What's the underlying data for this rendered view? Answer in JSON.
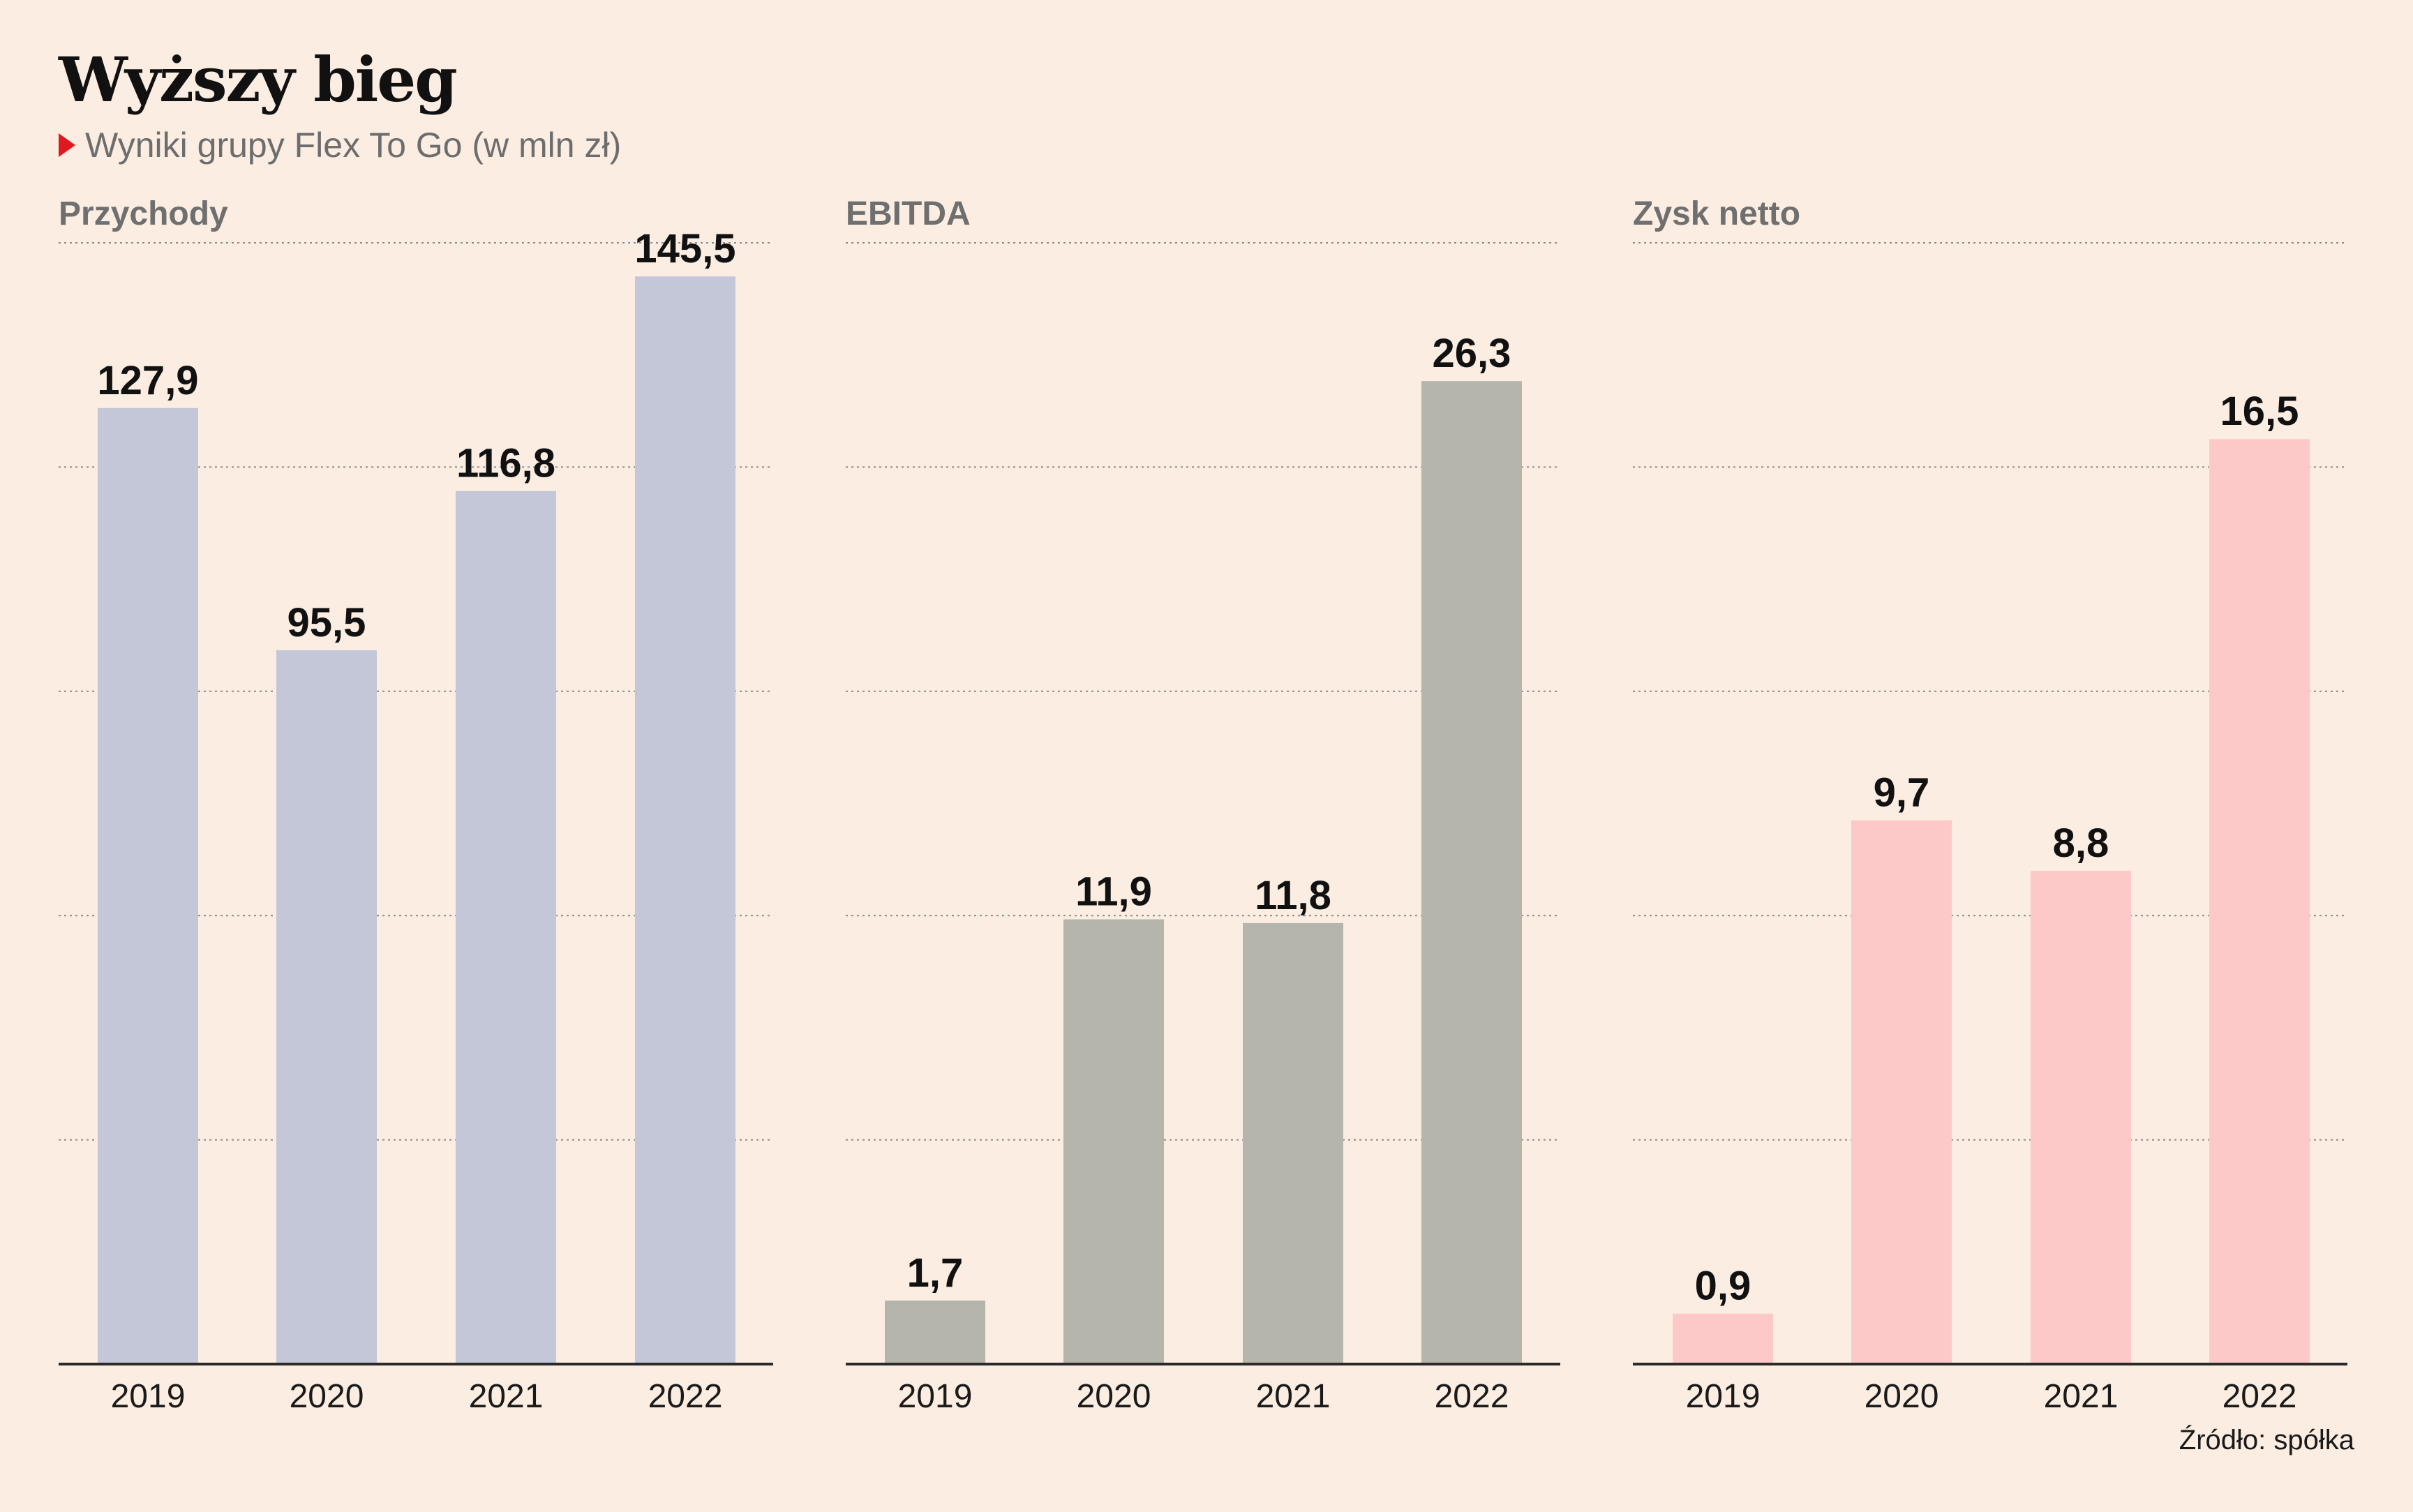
{
  "title": "Wyższy bieg",
  "subtitle": "Wyniki grupy Flex To Go (w mln zł)",
  "source": "Źródło: spółka",
  "chart_data": [
    {
      "type": "bar",
      "title": "Przychody",
      "categories": [
        "2019",
        "2020",
        "2021",
        "2022"
      ],
      "values": [
        127.9,
        95.5,
        116.8,
        145.5
      ],
      "labels": [
        "127,9",
        "95,5",
        "116,8",
        "145,5"
      ],
      "ylim": [
        0,
        150
      ],
      "gridlines": [
        0,
        30,
        60,
        90,
        120,
        150
      ],
      "color": "#c3c7d7",
      "grid": true
    },
    {
      "type": "bar",
      "title": "EBITDA",
      "categories": [
        "2019",
        "2020",
        "2021",
        "2022"
      ],
      "values": [
        1.7,
        11.9,
        11.8,
        26.3
      ],
      "labels": [
        "1,7",
        "11,9",
        "11,8",
        "26,3"
      ],
      "ylim": [
        0,
        30
      ],
      "gridlines": [
        0,
        6,
        12,
        18,
        24,
        30
      ],
      "color": "#b5b5ac",
      "grid": true
    },
    {
      "type": "bar",
      "title": "Zysk netto",
      "categories": [
        "2019",
        "2020",
        "2021",
        "2022"
      ],
      "values": [
        0.9,
        9.7,
        8.8,
        16.5
      ],
      "labels": [
        "0,9",
        "9,7",
        "8,8",
        "16,5"
      ],
      "ylim": [
        0,
        20
      ],
      "gridlines": [
        0,
        4,
        8,
        12,
        16,
        20
      ],
      "color": "#fdc9c8",
      "grid": true
    }
  ]
}
